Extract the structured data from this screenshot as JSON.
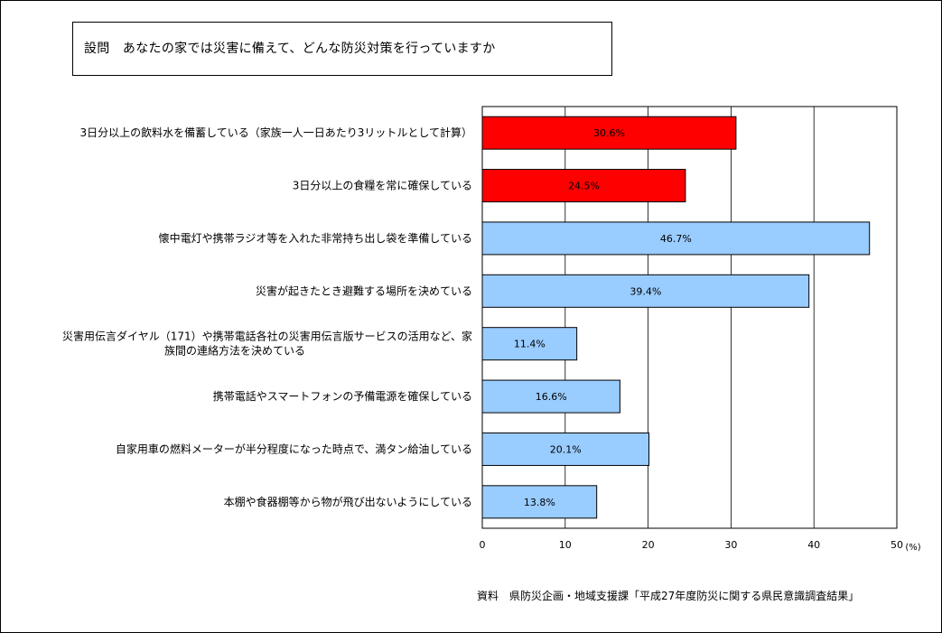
{
  "question": {
    "prefix": "設問",
    "text": "あなたの家では災害に備えて、どんな防災対策を行っていますか"
  },
  "source": "資料　県防災企画・地域支援課「平成27年度防災に関する県民意識調査結果」",
  "chart_data": {
    "type": "bar",
    "orientation": "horizontal",
    "title": "",
    "xlabel": "",
    "unit_label": "(%)",
    "xlim": [
      0,
      50
    ],
    "ticks": [
      0,
      10,
      20,
      30,
      40,
      50
    ],
    "grid": true,
    "categories": [
      [
        "3日分以上の飲料水を備蓄している（家族一人一日あたり3リットルとして計算）"
      ],
      [
        "3日分以上の食糧を常に確保している"
      ],
      [
        "懐中電灯や携帯ラジオ等を入れた非常持ち出し袋を準備している"
      ],
      [
        "災害が起きたとき避難する場所を決めている"
      ],
      [
        "災害用伝言ダイヤル（171）や携帯電話各社の災害用伝言版サービスの活用など、家",
        "族間の連絡方法を決めている"
      ],
      [
        "携帯電話やスマートフォンの予備電源を確保している"
      ],
      [
        "自家用車の燃料メーターが半分程度になった時点で、満タン給油している"
      ],
      [
        "本棚や食器棚等から物が飛び出ないようにしている"
      ]
    ],
    "values": [
      30.6,
      24.5,
      46.7,
      39.4,
      11.4,
      16.6,
      20.1,
      13.8
    ],
    "value_labels": [
      "30.6%",
      "24.5%",
      "46.7%",
      "39.4%",
      "11.4%",
      "16.6%",
      "20.1%",
      "13.8%"
    ],
    "colors": [
      "#ff0000",
      "#ff0000",
      "#99ccff",
      "#99ccff",
      "#99ccff",
      "#99ccff",
      "#99ccff",
      "#99ccff"
    ]
  }
}
